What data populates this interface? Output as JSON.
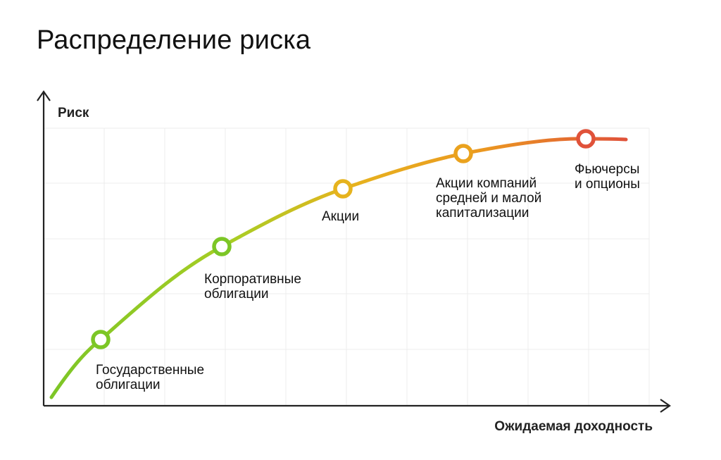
{
  "chart_data": {
    "type": "line",
    "title": "Распределение риска",
    "xlabel": "Ожидаемая доходность",
    "ylabel": "Риск",
    "grid": true,
    "points": [
      {
        "label": "Государственные облигации",
        "lines": [
          "Государственные",
          "облигации"
        ],
        "color": "#7cc626"
      },
      {
        "label": "Корпоративные облигации",
        "lines": [
          "Корпоративные",
          "облигации"
        ],
        "color": "#7cc626"
      },
      {
        "label": "Акции",
        "lines": [
          "Акции"
        ],
        "color": "#e6b31e"
      },
      {
        "label": "Акции компаний средней и малой капитализации",
        "lines": [
          "Акции компаний",
          "средней и малой",
          "капитализации"
        ],
        "color": "#eaa21e"
      },
      {
        "label": "Фьючерсы и опционы",
        "lines": [
          "Фьючерсы",
          "и опционы"
        ],
        "color": "#e0523a"
      }
    ],
    "colors": {
      "start": "#7cc626",
      "middle": "#e6b31e",
      "end": "#e0523a",
      "grid": "#ececec",
      "axis": "#222222"
    }
  }
}
